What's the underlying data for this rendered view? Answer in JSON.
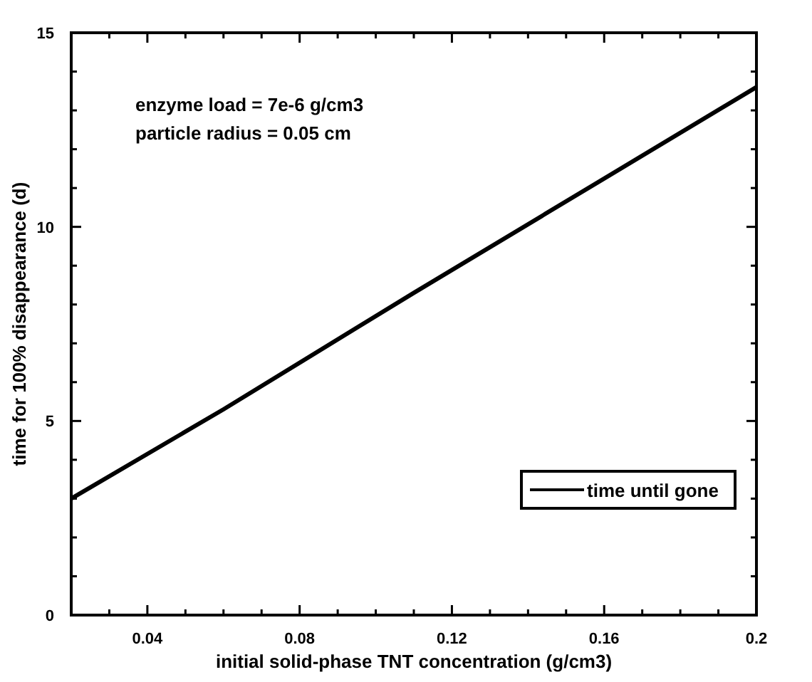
{
  "chart_data": {
    "type": "line",
    "xlabel": "initial solid-phase TNT concentration (g/cm3)",
    "ylabel": "time for 100% disappearance (d)",
    "annotations": [
      "enzyme load = 7e-6 g/cm3",
      "particle radius = 0.05 cm"
    ],
    "x": [
      0.02,
      0.06,
      0.11,
      0.2
    ],
    "series": [
      {
        "name": "time until gone",
        "color": "#000000",
        "values": [
          3.0,
          5.3,
          8.3,
          13.6
        ]
      }
    ],
    "xlim": [
      0.02,
      0.2
    ],
    "xticks": [
      {
        "value": 0.02,
        "label": null
      },
      {
        "value": 0.03,
        "label": null
      },
      0.04,
      {
        "value": 0.05,
        "label": null
      },
      {
        "value": 0.06,
        "label": null
      },
      {
        "value": 0.07,
        "label": null
      },
      0.08,
      {
        "value": 0.09,
        "label": null
      },
      {
        "value": 0.1,
        "label": null
      },
      {
        "value": 0.11,
        "label": null
      },
      0.12,
      {
        "value": 0.13,
        "label": null
      },
      {
        "value": 0.14,
        "label": null
      },
      {
        "value": 0.15,
        "label": null
      },
      0.16,
      {
        "value": 0.17,
        "label": null
      },
      {
        "value": 0.18,
        "label": null
      },
      {
        "value": 0.19,
        "label": null
      },
      0.2
    ],
    "ylim": [
      0,
      15
    ],
    "yticks": [
      0,
      {
        "value": 1,
        "label": null
      },
      {
        "value": 2,
        "label": null
      },
      {
        "value": 3,
        "label": null
      },
      {
        "value": 4,
        "label": null
      },
      5,
      {
        "value": 6,
        "label": null
      },
      {
        "value": 7,
        "label": null
      },
      {
        "value": 8,
        "label": null
      },
      {
        "value": 9,
        "label": null
      },
      10,
      {
        "value": 11,
        "label": null
      },
      {
        "value": 12,
        "label": null
      },
      {
        "value": 13,
        "label": null
      },
      {
        "value": 14,
        "label": null
      },
      15
    ],
    "grid": false,
    "legend": "bottom right",
    "marker": "none",
    "line_style": "solid"
  }
}
